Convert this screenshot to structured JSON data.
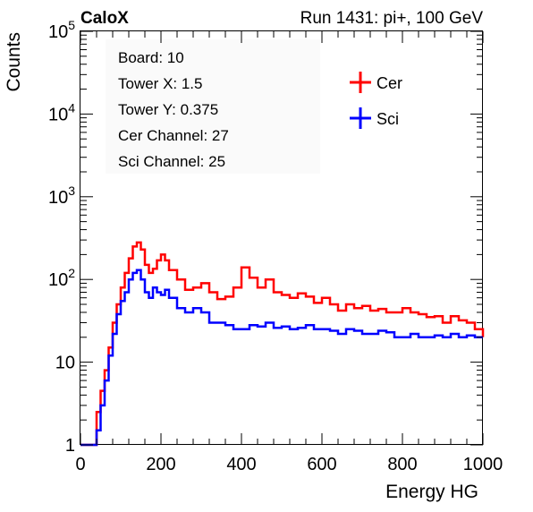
{
  "header": {
    "brand": "CaloX",
    "run_info": "Run 1431: pi+, 100 GeV"
  },
  "info_box": {
    "lines": [
      "Board: 10",
      "Tower X: 1.5",
      "Tower Y: 0.375",
      "Cer Channel: 27",
      "Sci Channel: 25"
    ]
  },
  "legend": {
    "placement": "top-right",
    "items": [
      {
        "label": "Cer",
        "color": "#ff0000"
      },
      {
        "label": "Sci",
        "color": "#0000ff"
      }
    ]
  },
  "chart_data": {
    "type": "line",
    "title": "",
    "xlabel": "Energy HG",
    "ylabel": "Counts",
    "xlim": [
      0,
      1000
    ],
    "ylim": [
      1,
      100000
    ],
    "y_scale": "log",
    "x_ticks": [
      0,
      200,
      400,
      600,
      800,
      1000
    ],
    "x_tick_labels": [
      "0",
      "200",
      "400",
      "600",
      "800",
      "1000"
    ],
    "y_ticks": [
      1,
      10,
      100,
      1000,
      10000,
      100000
    ],
    "y_tick_labels": [
      {
        "base": "1",
        "exp": ""
      },
      {
        "base": "10",
        "exp": ""
      },
      {
        "base": "10",
        "exp": "2"
      },
      {
        "base": "10",
        "exp": "3"
      },
      {
        "base": "10",
        "exp": "4"
      },
      {
        "base": "10",
        "exp": "5"
      }
    ],
    "grid": false,
    "x": [
      0,
      20,
      30,
      40,
      50,
      60,
      70,
      80,
      90,
      100,
      110,
      120,
      130,
      140,
      150,
      160,
      170,
      180,
      190,
      200,
      210,
      220,
      240,
      260,
      280,
      300,
      320,
      340,
      360,
      380,
      400,
      420,
      440,
      460,
      480,
      500,
      520,
      540,
      560,
      580,
      600,
      620,
      640,
      660,
      680,
      700,
      720,
      740,
      760,
      780,
      800,
      820,
      840,
      860,
      880,
      900,
      920,
      940,
      960,
      980,
      1000
    ],
    "series": [
      {
        "name": "Cer",
        "color": "#ff0000",
        "values": [
          1,
          1,
          1,
          2.5,
          4.5,
          8,
          15,
          30,
          50,
          80,
          120,
          180,
          250,
          280,
          230,
          150,
          120,
          135,
          170,
          200,
          170,
          130,
          100,
          75,
          80,
          90,
          70,
          58,
          62,
          80,
          140,
          105,
          80,
          100,
          70,
          65,
          60,
          68,
          62,
          52,
          60,
          50,
          42,
          50,
          45,
          48,
          42,
          44,
          40,
          40,
          45,
          40,
          38,
          35,
          36,
          30,
          36,
          32,
          30,
          25,
          20
        ]
      },
      {
        "name": "Sci",
        "color": "#0000ff",
        "values": [
          1,
          1,
          1,
          1.5,
          3,
          6,
          12,
          22,
          38,
          55,
          70,
          100,
          120,
          130,
          100,
          70,
          60,
          80,
          70,
          65,
          75,
          60,
          45,
          40,
          45,
          40,
          30,
          30,
          28,
          25,
          25,
          28,
          27,
          30,
          26,
          27,
          25,
          26,
          28,
          25,
          25,
          24,
          22,
          25,
          24,
          22,
          22,
          24,
          23,
          20,
          20,
          22,
          20,
          20,
          21,
          20,
          22,
          20,
          21,
          20,
          20
        ]
      }
    ]
  }
}
